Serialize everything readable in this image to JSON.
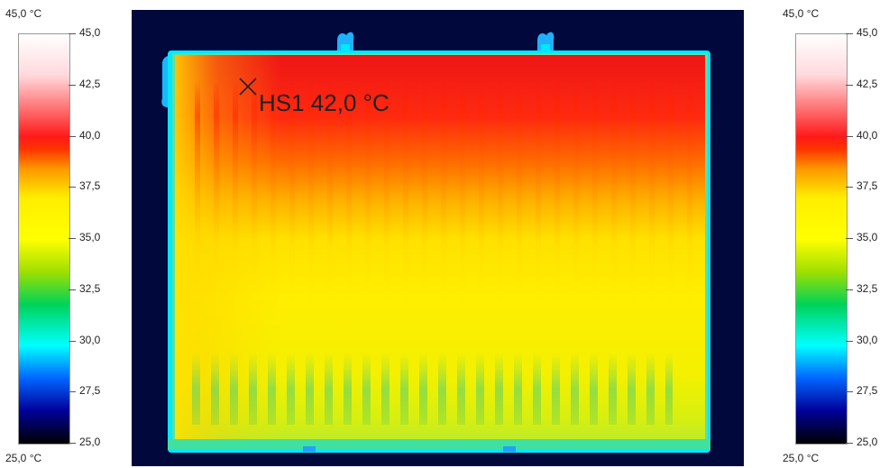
{
  "scale": {
    "top_label": "45,0 °C",
    "bottom_label": "25,0 °C",
    "ticks": [
      "45,0",
      "42,5",
      "40,0",
      "37,5",
      "35,0",
      "32,5",
      "30,0",
      "27,5",
      "25,0"
    ]
  },
  "measurement": {
    "label": "HS1 42,0 °C"
  },
  "colors": {
    "background": "#00083c",
    "hot": "#ff1a1a",
    "warm": "#ffee00",
    "cool": "#00d25a",
    "edge": "#00ffff"
  }
}
